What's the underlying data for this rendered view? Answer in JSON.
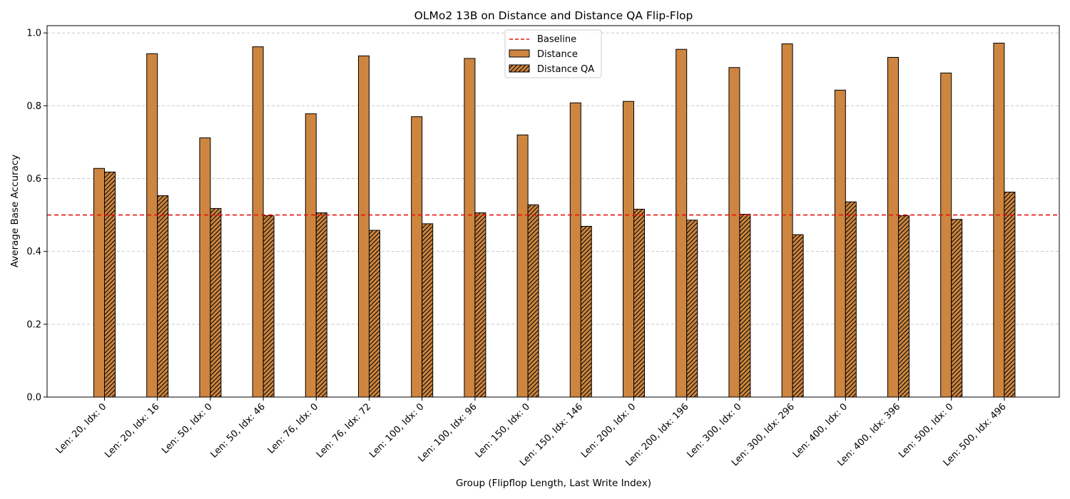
{
  "chart_data": {
    "type": "bar",
    "title": "OLMo2 13B on Distance and Distance QA Flip-Flop",
    "xlabel": "Group (Flipflop Length, Last Write Index)",
    "ylabel": "Average Base Accuracy",
    "ylim": [
      0,
      1.02
    ],
    "yticks": [
      "0.0",
      "0.2",
      "0.4",
      "0.6",
      "0.8",
      "1.0"
    ],
    "grid": "horizontal dashed",
    "legend_position": "top-center",
    "categories": [
      "Len: 20, Idx: 0",
      "Len: 20, Idx: 16",
      "Len: 50, Idx: 0",
      "Len: 50, Idx: 46",
      "Len: 76, Idx: 0",
      "Len: 76, Idx: 72",
      "Len: 100, Idx: 0",
      "Len: 100, Idx: 96",
      "Len: 150, Idx: 0",
      "Len: 150, Idx: 146",
      "Len: 200, Idx: 0",
      "Len: 200, Idx: 196",
      "Len: 300, Idx: 0",
      "Len: 300, Idx: 296",
      "Len: 400, Idx: 0",
      "Len: 400, Idx: 396",
      "Len: 500, Idx: 0",
      "Len: 500, Idx: 496"
    ],
    "series": [
      {
        "name": "Distance",
        "hatch": false,
        "color": "#CD853F",
        "values": [
          0.628,
          0.943,
          0.712,
          0.962,
          0.778,
          0.937,
          0.77,
          0.93,
          0.72,
          0.808,
          0.812,
          0.955,
          0.905,
          0.97,
          0.843,
          0.933,
          0.89,
          0.972
        ]
      },
      {
        "name": "Distance QA",
        "hatch": true,
        "color": "#CD853F",
        "values": [
          0.618,
          0.553,
          0.518,
          0.498,
          0.506,
          0.458,
          0.476,
          0.506,
          0.528,
          0.469,
          0.516,
          0.486,
          0.502,
          0.446,
          0.536,
          0.498,
          0.488,
          0.563
        ]
      }
    ],
    "baseline": {
      "name": "Baseline",
      "value": 0.5,
      "color": "#E8120C",
      "style": "dashed"
    }
  }
}
